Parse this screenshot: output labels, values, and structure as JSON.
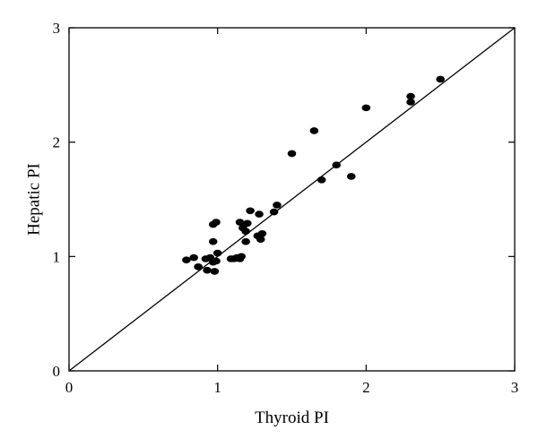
{
  "chart_data": {
    "type": "scatter",
    "xlabel": "Thyroid PI",
    "ylabel": "Hepatic PI",
    "xlim": [
      0,
      3
    ],
    "ylim": [
      0,
      3
    ],
    "xticks": [
      "0",
      "1",
      "2",
      "3"
    ],
    "yticks": [
      "0",
      "1",
      "2",
      "3"
    ],
    "grid": false,
    "legend": "none",
    "reference_line": {
      "from": [
        0,
        0
      ],
      "to": [
        3,
        3
      ]
    },
    "series": [
      {
        "points": [
          [
            0.79,
            0.97
          ],
          [
            0.84,
            0.99
          ],
          [
            0.87,
            0.91
          ],
          [
            0.92,
            0.98
          ],
          [
            0.93,
            0.88
          ],
          [
            0.95,
            0.99
          ],
          [
            0.97,
            0.95
          ],
          [
            0.98,
            0.87
          ],
          [
            0.99,
            0.96
          ],
          [
            0.97,
            1.13
          ],
          [
            0.97,
            1.28
          ],
          [
            0.99,
            1.3
          ],
          [
            1.0,
            1.03
          ],
          [
            1.09,
            0.98
          ],
          [
            1.11,
            0.98
          ],
          [
            1.13,
            0.99
          ],
          [
            1.15,
            0.98
          ],
          [
            1.16,
            1.0
          ],
          [
            1.15,
            1.3
          ],
          [
            1.17,
            1.25
          ],
          [
            1.19,
            1.22
          ],
          [
            1.19,
            1.13
          ],
          [
            1.2,
            1.29
          ],
          [
            1.22,
            1.4
          ],
          [
            1.27,
            1.18
          ],
          [
            1.28,
            1.37
          ],
          [
            1.29,
            1.15
          ],
          [
            1.3,
            1.2
          ],
          [
            1.38,
            1.39
          ],
          [
            1.4,
            1.45
          ],
          [
            1.5,
            1.9
          ],
          [
            1.65,
            2.1
          ],
          [
            1.7,
            1.67
          ],
          [
            1.8,
            1.8
          ],
          [
            1.9,
            1.7
          ],
          [
            2.0,
            2.3
          ],
          [
            2.3,
            2.35
          ],
          [
            2.3,
            2.4
          ],
          [
            2.5,
            2.55
          ]
        ]
      }
    ]
  }
}
